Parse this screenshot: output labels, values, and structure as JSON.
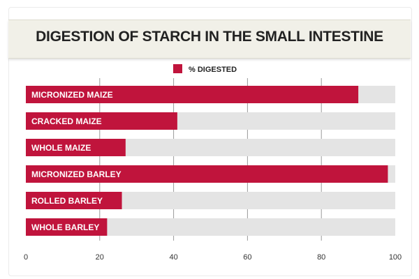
{
  "chart_data": {
    "type": "bar",
    "orientation": "horizontal",
    "title": "DIGESTION OF STARCH IN THE SMALL INTESTINE",
    "categories": [
      "MICRONIZED MAIZE",
      "CRACKED MAIZE",
      "WHOLE MAIZE",
      "MICRONIZED BARLEY",
      "ROLLED BARLEY",
      "WHOLE BARLEY"
    ],
    "series": [
      {
        "name": "% DIGESTED",
        "values": [
          90,
          41,
          27,
          98,
          26,
          22
        ]
      }
    ],
    "xlim": [
      0,
      100
    ],
    "x_ticks": [
      0,
      20,
      40,
      60,
      80,
      100
    ],
    "grid": true,
    "legend_position": "top-center",
    "colors": {
      "bar": "#c0143c",
      "track": "#e4e4e4",
      "grid": "#9a9a9a"
    }
  }
}
